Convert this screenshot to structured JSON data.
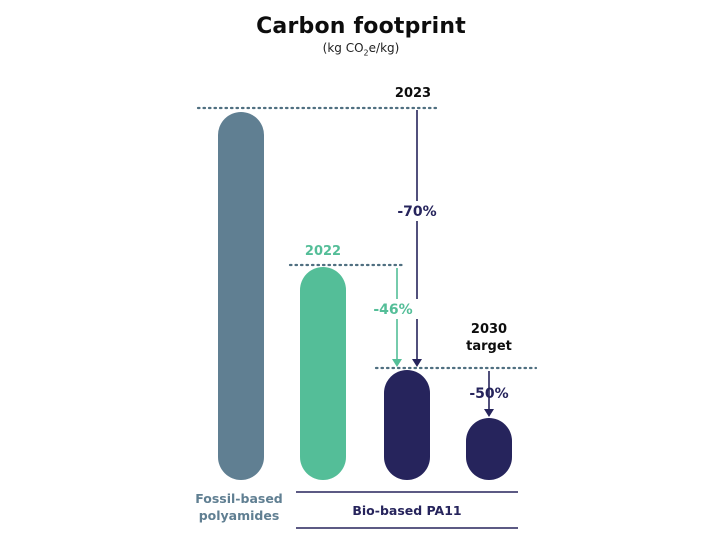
{
  "title": "Carbon footprint",
  "subtitle": {
    "prefix": "(kg CO",
    "sub": "2",
    "suffix": "e/kg)"
  },
  "colors": {
    "fossil": "#607f92",
    "bio_2022": "#54be98",
    "bio_2023": "#26245c",
    "dotted": "#4f6f80",
    "text_dark": "#0d0d0d",
    "text_gray": "#607f92"
  },
  "chart_data": {
    "type": "bar",
    "title": "Carbon footprint",
    "ylabel": "(kg CO2e/kg)",
    "bars": [
      {
        "id": "fossil",
        "value": 100,
        "group": "Fossil-based polyamides"
      },
      {
        "id": "bio2022",
        "value": 54,
        "label": "2022",
        "change": "-46%"
      },
      {
        "id": "bio2023",
        "value": 30,
        "label": "2023",
        "change": "-70%"
      },
      {
        "id": "target2030",
        "value": 15,
        "label": "2030 target",
        "change": "-50%"
      }
    ],
    "groups": [
      "Fossil-based polyamides",
      "Bio-based PA11"
    ],
    "ylim": [
      0,
      100
    ],
    "grid": false,
    "legend": "none"
  },
  "labels": {
    "year_2023": "2023",
    "year_2022": "2022",
    "target_line1": "2030",
    "target_line2": "target",
    "pct_70": "-70%",
    "pct_46": "-46%",
    "pct_50": "-50%",
    "fossil_line1": "Fossil-based",
    "fossil_line2": "polyamides",
    "bio_group": "Bio-based PA11"
  }
}
